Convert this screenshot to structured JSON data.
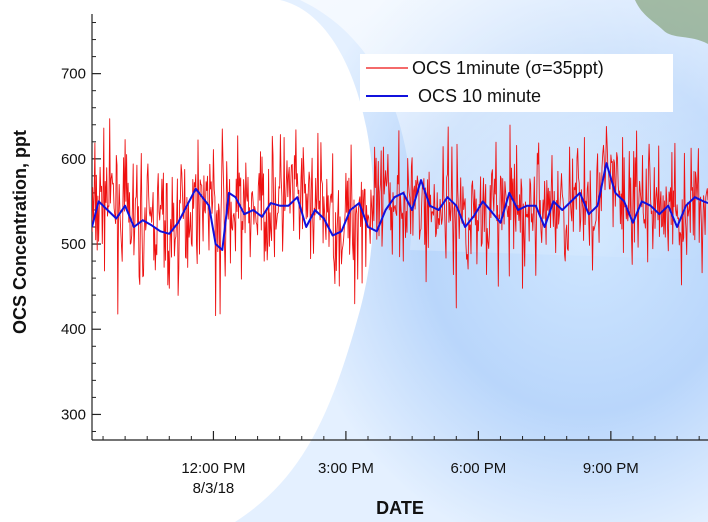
{
  "chart_data": {
    "type": "line",
    "title": "",
    "xlabel": "DATE",
    "ylabel": "OCS Concentration, ppt",
    "x_unit": "hours on 8/3/18",
    "xlim": [
      9.25,
      23.2
    ],
    "ylim": [
      270,
      770
    ],
    "y_ticks": [
      300,
      400,
      500,
      600,
      700
    ],
    "x_ticks": [
      {
        "value": 12,
        "label": "12:00 PM",
        "sublabel": "8/3/18"
      },
      {
        "value": 15,
        "label": "3:00 PM",
        "sublabel": ""
      },
      {
        "value": 18,
        "label": "6:00 PM",
        "sublabel": ""
      },
      {
        "value": 21,
        "label": "9:00 PM",
        "sublabel": ""
      }
    ],
    "legend_position": "top-right",
    "grid": false,
    "series": [
      {
        "name": "OCS 1minute (σ=35ppt)",
        "color": "#ee1111",
        "sigma_ppt": 35,
        "x": [
          9.25,
          9.55,
          9.9,
          10.3,
          10.7,
          11.1,
          11.5,
          11.8,
          12.05,
          12.4,
          12.8,
          13.2,
          13.7,
          14.2,
          14.6,
          14.9,
          15.3,
          15.7,
          16.2,
          16.6,
          17.0,
          17.4,
          17.8,
          18.2,
          18.7,
          19.1,
          19.5,
          19.9,
          20.3,
          20.7,
          21.0,
          21.4,
          21.8,
          22.2,
          22.6,
          23.0,
          23.2
        ],
        "values": [
          530,
          560,
          540,
          525,
          530,
          520,
          545,
          560,
          545,
          530,
          540,
          545,
          555,
          550,
          540,
          520,
          545,
          535,
          560,
          545,
          540,
          555,
          530,
          545,
          540,
          535,
          550,
          540,
          545,
          560,
          575,
          545,
          550,
          545,
          540,
          550,
          550
        ],
        "noise_amplitude_ppt": 35,
        "notable_points": [
          {
            "x": 11.0,
            "y": 448
          },
          {
            "x": 12.05,
            "y": 416
          },
          {
            "x": 12.15,
            "y": 418
          },
          {
            "x": 12.2,
            "y": 635
          },
          {
            "x": 12.55,
            "y": 627
          },
          {
            "x": 13.6,
            "y": 625
          },
          {
            "x": 15.2,
            "y": 430
          },
          {
            "x": 16.2,
            "y": 633
          },
          {
            "x": 17.5,
            "y": 425
          },
          {
            "x": 19.0,
            "y": 448
          },
          {
            "x": 20.4,
            "y": 625
          },
          {
            "x": 20.9,
            "y": 638
          },
          {
            "x": 22.6,
            "y": 452
          }
        ]
      },
      {
        "name": "OCS 10 minute",
        "color": "#1111dd",
        "x": [
          9.25,
          9.4,
          9.6,
          9.8,
          10.0,
          10.2,
          10.4,
          10.6,
          10.8,
          11.0,
          11.2,
          11.4,
          11.6,
          11.75,
          11.9,
          12.05,
          12.2,
          12.35,
          12.5,
          12.7,
          12.9,
          13.1,
          13.3,
          13.5,
          13.7,
          13.9,
          14.1,
          14.3,
          14.5,
          14.7,
          14.9,
          15.1,
          15.3,
          15.5,
          15.7,
          15.9,
          16.1,
          16.3,
          16.5,
          16.7,
          16.9,
          17.1,
          17.3,
          17.5,
          17.7,
          17.9,
          18.1,
          18.3,
          18.5,
          18.7,
          18.9,
          19.1,
          19.3,
          19.5,
          19.7,
          19.9,
          20.1,
          20.3,
          20.5,
          20.7,
          20.9,
          21.1,
          21.3,
          21.5,
          21.7,
          21.9,
          22.1,
          22.3,
          22.5,
          22.7,
          22.9,
          23.1,
          23.2
        ],
        "values": [
          520,
          550,
          540,
          530,
          545,
          520,
          528,
          522,
          515,
          512,
          525,
          545,
          565,
          555,
          545,
          500,
          493,
          560,
          555,
          535,
          540,
          532,
          548,
          545,
          545,
          555,
          520,
          540,
          530,
          510,
          515,
          540,
          548,
          520,
          515,
          540,
          555,
          560,
          540,
          575,
          545,
          540,
          555,
          545,
          520,
          533,
          550,
          538,
          525,
          560,
          540,
          545,
          545,
          520,
          550,
          540,
          550,
          560,
          535,
          545,
          595,
          560,
          550,
          525,
          550,
          545,
          535,
          545,
          520,
          545,
          555,
          550,
          548
        ]
      }
    ]
  }
}
